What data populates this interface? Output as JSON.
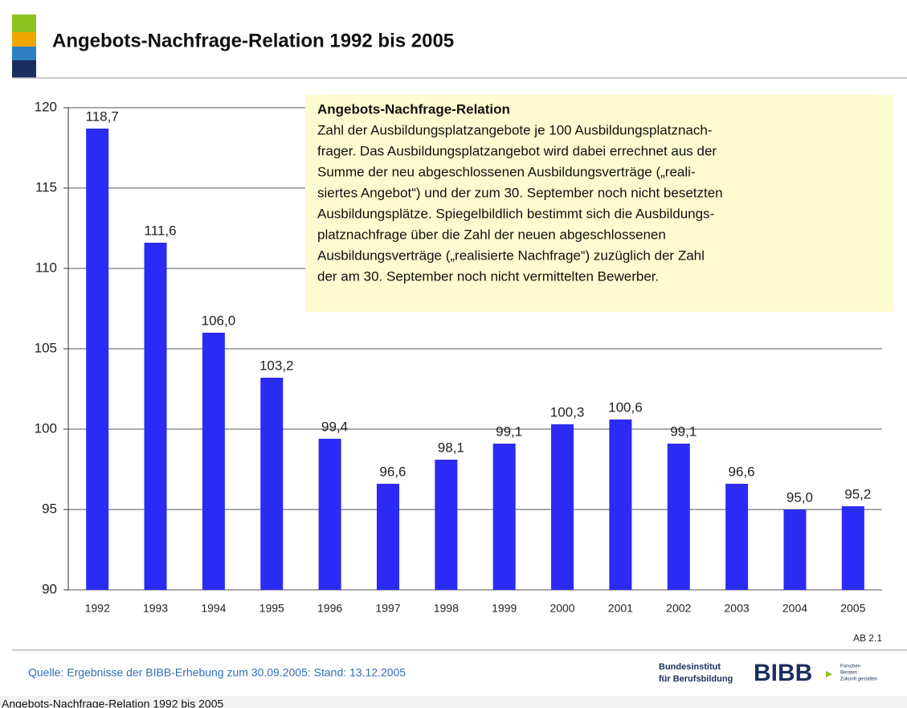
{
  "chart_data": {
    "type": "bar",
    "title": "Angebots-Nachfrage-Relation 1992 bis 2005",
    "categories": [
      "1992",
      "1993",
      "1994",
      "1995",
      "1996",
      "1997",
      "1998",
      "1999",
      "2000",
      "2001",
      "2002",
      "2003",
      "2004",
      "2005"
    ],
    "values": [
      118.7,
      111.6,
      106.0,
      103.2,
      99.4,
      96.6,
      98.1,
      99.1,
      100.3,
      100.6,
      99.1,
      96.6,
      95.0,
      95.2
    ],
    "value_labels": [
      "118,7",
      "111,6",
      "106,0",
      "103,2",
      "99,4",
      "96,6",
      "98,1",
      "99,1",
      "100,3",
      "100,6",
      "99,1",
      "96,6",
      "95,0",
      "95,2"
    ],
    "color": "#2b2bf5",
    "ylim": [
      90,
      120
    ],
    "yticks": [
      90,
      95,
      100,
      105,
      110,
      115,
      120
    ],
    "grid": true,
    "annotation": {
      "title": "Angebots-Nachfrage-Relation",
      "lines": [
        "Zahl der Ausbildungsplatzangebote je 100 Ausbildungsplatznach-",
        "frager. Das Ausbildungsplatzangebot wird dabei errechnet aus der",
        "Summe der neu abgeschlossenen Ausbildungsverträge („reali-",
        "siertes Angebot“) und der zum 30. September noch nicht besetzten",
        "Ausbildungsplätze. Spiegelbildlich bestimmt sich die Ausbildungs-",
        "platznachfrage über die Zahl der neuen abgeschlossenen",
        "Ausbildungsverträge („realisierte Nachfrage“) zuzüglich der Zahl",
        "der am 30. September noch nicht vermittelten Bewerber."
      ]
    }
  },
  "footer": {
    "code": "AB 2.1",
    "source": "Quelle: Ergebnisse der BIBB-Erhebung zum 30.09.2005: Stand: 13.12.2005",
    "logo": {
      "line1": "Bundesinstitut",
      "line2": "für Berufsbildung",
      "mark": "BIBB",
      "motto": [
        "Forschen",
        "Beraten",
        "Zukunft gestalten"
      ]
    }
  },
  "caption": "Angebots-Nachfrage-Relation 1992 bis 2005"
}
